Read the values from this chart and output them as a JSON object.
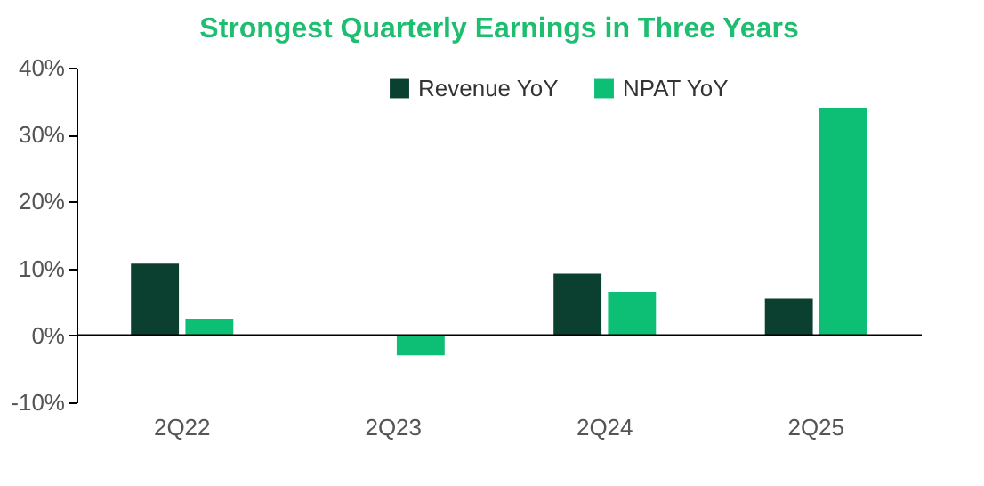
{
  "chart_data": {
    "type": "bar",
    "title": "Strongest Quarterly Earnings in Three Years",
    "categories": [
      "2Q22",
      "2Q23",
      "2Q24",
      "2Q25"
    ],
    "series": [
      {
        "name": "Revenue YoY",
        "color": "#0b3f2f",
        "values": [
          10.7,
          0,
          9.2,
          5.5
        ]
      },
      {
        "name": "NPAT YoY",
        "color": "#0dbf75",
        "values": [
          2.5,
          -3.0,
          6.5,
          34.0
        ]
      }
    ],
    "ylim": [
      -10,
      40
    ],
    "yticks": [
      {
        "value": -10,
        "label": "-10%"
      },
      {
        "value": 0,
        "label": "0%"
      },
      {
        "value": 10,
        "label": "10%"
      },
      {
        "value": 20,
        "label": "20%"
      },
      {
        "value": 30,
        "label": "30%"
      },
      {
        "value": 40,
        "label": "40%"
      }
    ],
    "ref_lines": [
      {
        "axis": "y",
        "value": 0,
        "color": "#000000"
      }
    ],
    "grid": false,
    "legend": "top"
  }
}
